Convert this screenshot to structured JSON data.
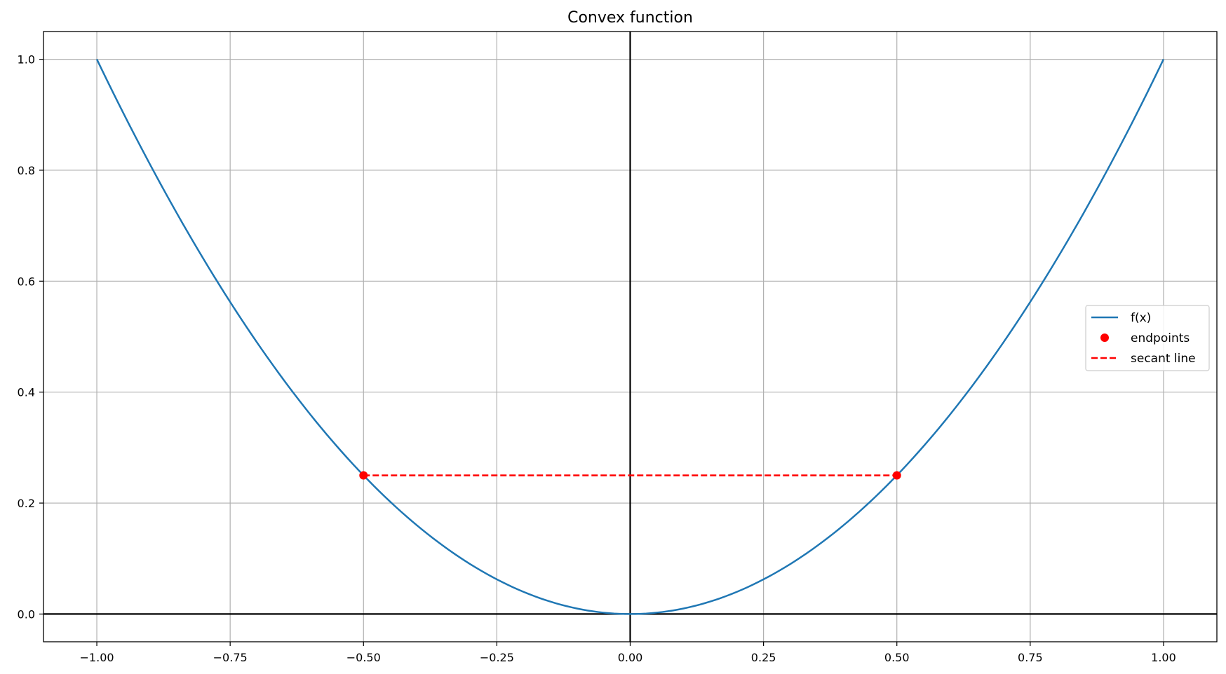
{
  "chart_data": {
    "type": "line",
    "title": "Convex function",
    "xlabel": "",
    "ylabel": "",
    "xlim": [
      -1.1,
      1.1
    ],
    "ylim": [
      -0.05,
      1.05
    ],
    "grid": true,
    "legend_position": "center-right",
    "x_ticks": [
      -1.0,
      -0.75,
      -0.5,
      -0.25,
      0.0,
      0.25,
      0.5,
      0.75,
      1.0
    ],
    "x_tick_labels": [
      "−1.00",
      "−0.75",
      "−0.50",
      "−0.25",
      "0.00",
      "0.25",
      "0.50",
      "0.75",
      "1.00"
    ],
    "y_ticks": [
      0.0,
      0.2,
      0.4,
      0.6,
      0.8,
      1.0
    ],
    "y_tick_labels": [
      "0.0",
      "0.2",
      "0.4",
      "0.6",
      "0.8",
      "1.0"
    ],
    "reference_lines": {
      "x": 0,
      "y": 0,
      "color": "#000000"
    },
    "series": [
      {
        "name": "f(x)",
        "kind": "line",
        "color": "#1f77b4",
        "x": [
          -1.0,
          -0.9,
          -0.8,
          -0.7,
          -0.6,
          -0.5,
          -0.4,
          -0.3,
          -0.2,
          -0.1,
          0.0,
          0.1,
          0.2,
          0.3,
          0.4,
          0.5,
          0.6,
          0.7,
          0.8,
          0.9,
          1.0
        ],
        "y": [
          1.0,
          0.81,
          0.64,
          0.49,
          0.36,
          0.25,
          0.16,
          0.09,
          0.04,
          0.01,
          0.0,
          0.01,
          0.04,
          0.09,
          0.16,
          0.25,
          0.36,
          0.49,
          0.64,
          0.81,
          1.0
        ]
      },
      {
        "name": "endpoints",
        "kind": "points",
        "color": "#ff0000",
        "x": [
          -0.5,
          0.5
        ],
        "y": [
          0.25,
          0.25
        ]
      },
      {
        "name": "secant line",
        "kind": "dashed-line",
        "color": "#ff0000",
        "x": [
          -0.5,
          0.5
        ],
        "y": [
          0.25,
          0.25
        ]
      }
    ]
  }
}
